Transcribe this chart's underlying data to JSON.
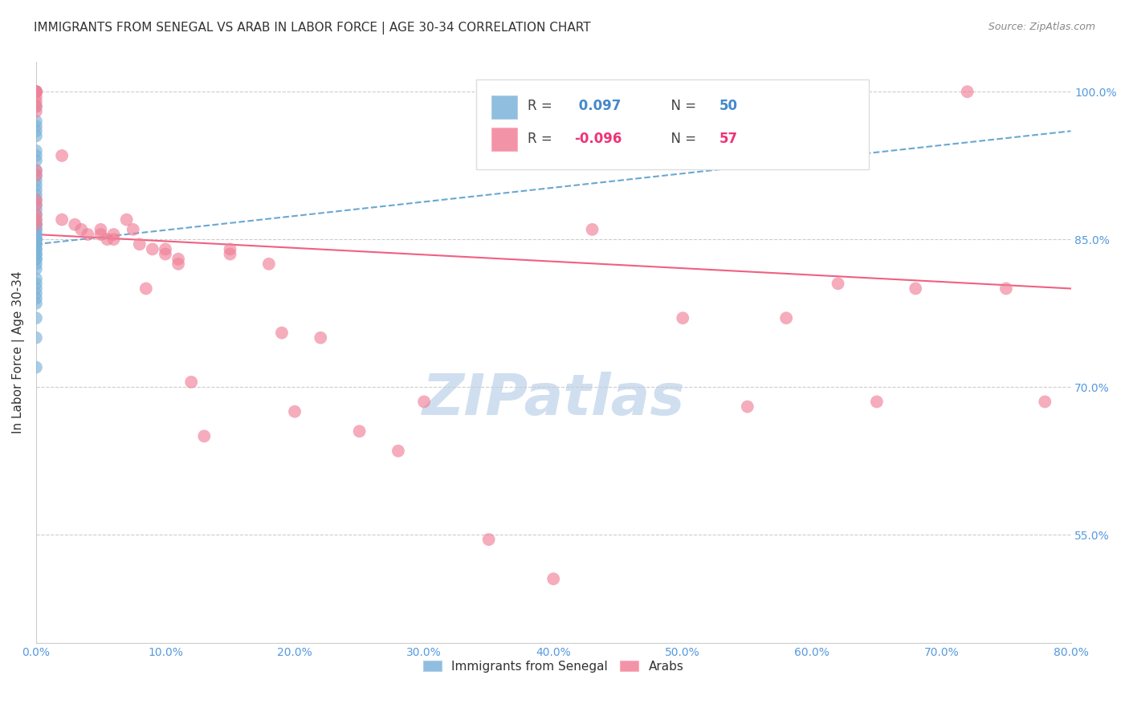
{
  "title": "IMMIGRANTS FROM SENEGAL VS ARAB IN LABOR FORCE | AGE 30-34 CORRELATION CHART",
  "source": "Source: ZipAtlas.com",
  "ylabel": "In Labor Force | Age 30-34",
  "x_ticks": [
    0.0,
    10.0,
    20.0,
    30.0,
    40.0,
    50.0,
    60.0,
    70.0,
    80.0
  ],
  "x_tick_labels": [
    "0.0%",
    "10.0%",
    "20.0%",
    "30.0%",
    "40.0%",
    "50.0%",
    "60.0%",
    "70.0%",
    "80.0%"
  ],
  "y_ticks": [
    100.0,
    85.0,
    70.0,
    55.0
  ],
  "y_tick_labels": [
    "100.0%",
    "85.0%",
    "70.0%",
    "55.0%"
  ],
  "xlim": [
    0.0,
    80.0
  ],
  "ylim": [
    44.0,
    103.0
  ],
  "watermark": "ZIPatlas",
  "senegal_x": [
    0.0,
    0.0,
    0.0,
    0.0,
    0.0,
    0.0,
    0.0,
    0.0,
    0.0,
    0.0,
    0.0,
    0.0,
    0.0,
    0.0,
    0.0,
    0.0,
    0.0,
    0.0,
    0.0,
    0.0,
    0.0,
    0.0,
    0.0,
    0.0,
    0.0,
    0.0,
    0.0,
    0.0,
    0.0,
    0.0,
    0.0,
    0.0,
    0.0,
    0.0,
    0.0,
    0.0,
    0.0,
    0.0,
    0.0,
    0.0,
    0.0,
    0.0,
    0.0,
    0.0,
    0.0,
    0.0,
    0.0,
    0.0,
    0.0,
    0.0
  ],
  "senegal_y": [
    100.0,
    100.0,
    98.5,
    97.0,
    96.5,
    96.0,
    95.5,
    94.0,
    93.5,
    93.0,
    92.0,
    91.5,
    91.0,
    90.5,
    90.0,
    89.5,
    89.0,
    88.5,
    88.0,
    87.5,
    87.0,
    86.5,
    86.5,
    86.0,
    86.0,
    85.5,
    85.5,
    85.0,
    85.0,
    85.0,
    85.0,
    84.5,
    84.5,
    84.0,
    84.0,
    83.5,
    83.5,
    83.0,
    83.0,
    82.5,
    82.0,
    81.0,
    80.5,
    80.0,
    79.5,
    79.0,
    78.5,
    77.0,
    75.0,
    72.0
  ],
  "arab_x": [
    0.0,
    0.0,
    0.0,
    0.0,
    0.0,
    0.0,
    0.0,
    0.0,
    0.0,
    0.0,
    0.0,
    0.0,
    0.0,
    0.0,
    0.0,
    2.0,
    2.0,
    3.0,
    3.5,
    4.0,
    5.0,
    5.0,
    5.5,
    6.0,
    6.0,
    7.0,
    7.5,
    8.0,
    8.5,
    9.0,
    10.0,
    10.0,
    11.0,
    11.0,
    12.0,
    13.0,
    15.0,
    15.0,
    18.0,
    19.0,
    20.0,
    22.0,
    25.0,
    28.0,
    30.0,
    35.0,
    40.0,
    43.0,
    50.0,
    55.0,
    58.0,
    62.0,
    65.0,
    68.0,
    72.0,
    75.0,
    78.0
  ],
  "arab_y": [
    100.0,
    100.0,
    100.0,
    100.0,
    99.5,
    99.0,
    98.5,
    98.0,
    92.0,
    91.5,
    89.0,
    88.5,
    87.5,
    87.0,
    86.5,
    93.5,
    87.0,
    86.5,
    86.0,
    85.5,
    86.0,
    85.5,
    85.0,
    85.5,
    85.0,
    87.0,
    86.0,
    84.5,
    80.0,
    84.0,
    83.5,
    84.0,
    82.5,
    83.0,
    70.5,
    65.0,
    83.5,
    84.0,
    82.5,
    75.5,
    67.5,
    75.0,
    65.5,
    63.5,
    68.5,
    54.5,
    50.5,
    86.0,
    77.0,
    68.0,
    77.0,
    80.5,
    68.5,
    80.0,
    100.0,
    80.0,
    68.5
  ],
  "senegal_color": "#7bb3d9",
  "arab_color": "#f08098",
  "senegal_trend_color": "#6aa8d0",
  "arab_trend_color": "#f06080",
  "bg_color": "#ffffff",
  "grid_color": "#cccccc",
  "tick_color": "#5599dd",
  "title_color": "#333333",
  "title_fontsize": 11,
  "axis_label_color": "#333333",
  "watermark_color": "#d0dff0",
  "watermark_fontsize": 52,
  "source_color": "#888888",
  "legend_r_color_blue": "#4488cc",
  "legend_r_color_pink": "#ee3377",
  "senegal_trend_x": [
    0.0,
    80.0
  ],
  "senegal_trend_y": [
    84.5,
    96.0
  ],
  "arab_trend_x": [
    0.0,
    80.0
  ],
  "arab_trend_y": [
    85.5,
    80.0
  ]
}
